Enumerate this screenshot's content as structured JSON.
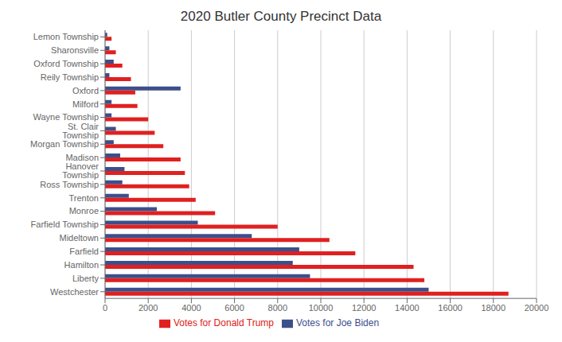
{
  "chart_data": {
    "type": "bar",
    "title": "2020 Butler County Precinct Data",
    "orientation": "horizontal",
    "categories": [
      "Lemon Township",
      "Sharonsville",
      "Oxford Township",
      "Reily Township",
      "Oxford",
      "Milford",
      "Wayne Township",
      "St. Clair Township",
      "Morgan Township",
      "Madison",
      "Hanover Township",
      "Ross Township",
      "Trenton",
      "Monroe",
      "Farfield Township",
      "Mideltown",
      "Farfield",
      "Hamilton",
      "Liberty",
      "Westchester"
    ],
    "series": [
      {
        "name": "Votes for Joe Biden",
        "color": "#3C4F8A",
        "values": [
          100,
          200,
          400,
          200,
          3500,
          300,
          300,
          500,
          400,
          700,
          900,
          800,
          1100,
          2400,
          4300,
          6800,
          9000,
          8700,
          9500,
          15000
        ]
      },
      {
        "name": "Votes for Donald Trump",
        "color": "#E02020",
        "values": [
          300,
          500,
          800,
          1200,
          1400,
          1500,
          2000,
          2300,
          2700,
          3500,
          3700,
          3900,
          4200,
          5100,
          8000,
          10400,
          11600,
          14300,
          14800,
          18700
        ]
      }
    ],
    "xlim": [
      0,
      20000
    ],
    "xticks": [
      0,
      2000,
      4000,
      6000,
      8000,
      10000,
      12000,
      14000,
      16000,
      18000,
      20000
    ],
    "grid": true,
    "legend": "bottom"
  }
}
